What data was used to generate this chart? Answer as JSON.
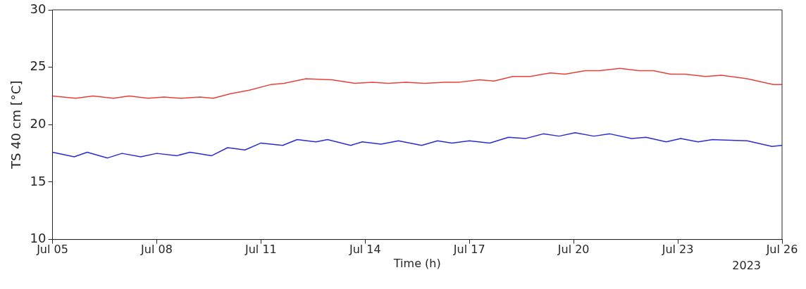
{
  "chart_data": {
    "type": "line",
    "xlabel": "Time (h)",
    "ylabel": "TS 40 cm [°C]",
    "annotations": [
      "2023"
    ],
    "xlim": [
      "2023-07-05T00:00",
      "2023-07-26T00:00"
    ],
    "xticks": [
      {
        "value": "2023-07-05T00:00",
        "label": "Jul 05"
      },
      {
        "value": "2023-07-08T00:00",
        "label": "Jul 08"
      },
      {
        "value": "2023-07-11T00:00",
        "label": "Jul 11"
      },
      {
        "value": "2023-07-14T00:00",
        "label": "Jul 14"
      },
      {
        "value": "2023-07-17T00:00",
        "label": "Jul 17"
      },
      {
        "value": "2023-07-20T00:00",
        "label": "Jul 20"
      },
      {
        "value": "2023-07-23T00:00",
        "label": "Jul 23"
      },
      {
        "value": "2023-07-26T00:00",
        "label": "Jul 26"
      }
    ],
    "ylim": [
      10,
      30
    ],
    "yticks": [
      10,
      15,
      20,
      25,
      30
    ],
    "grid": false,
    "legend": false,
    "marker": "none",
    "line_style": "solid",
    "series": [
      {
        "color": "#e8413a",
        "x": [
          "2023-07-05T00:00",
          "2023-07-05T16:00",
          "2023-07-06T04:00",
          "2023-07-06T18:00",
          "2023-07-07T05:00",
          "2023-07-07T18:00",
          "2023-07-08T05:00",
          "2023-07-08T17:00",
          "2023-07-09T06:00",
          "2023-07-09T15:00",
          "2023-07-10T03:00",
          "2023-07-10T16:00",
          "2023-07-11T07:00",
          "2023-07-11T16:00",
          "2023-07-12T07:00",
          "2023-07-13T01:00",
          "2023-07-13T17:00",
          "2023-07-14T05:00",
          "2023-07-14T16:00",
          "2023-07-15T04:00",
          "2023-07-15T17:00",
          "2023-07-16T07:00",
          "2023-07-16T17:00",
          "2023-07-17T07:00",
          "2023-07-17T17:00",
          "2023-07-18T06:00",
          "2023-07-18T18:00",
          "2023-07-19T08:00",
          "2023-07-19T18:00",
          "2023-07-20T08:00",
          "2023-07-20T18:00",
          "2023-07-21T08:00",
          "2023-07-21T21:00",
          "2023-07-22T07:00",
          "2023-07-22T19:00",
          "2023-07-23T05:00",
          "2023-07-23T19:00",
          "2023-07-24T06:00",
          "2023-07-25T00:00",
          "2023-07-25T18:00",
          "2023-07-26T00:00"
        ],
        "values": [
          22.5,
          22.3,
          22.5,
          22.3,
          22.5,
          22.3,
          22.4,
          22.3,
          22.4,
          22.3,
          22.7,
          23.0,
          23.5,
          23.6,
          24.0,
          23.9,
          23.6,
          23.7,
          23.6,
          23.7,
          23.6,
          23.7,
          23.7,
          23.9,
          23.8,
          24.2,
          24.2,
          24.5,
          24.4,
          24.7,
          24.7,
          24.9,
          24.7,
          24.7,
          24.4,
          24.4,
          24.2,
          24.3,
          24.0,
          23.5,
          23.5
        ]
      },
      {
        "color": "#2b2bd2",
        "x": [
          "2023-07-05T00:00",
          "2023-07-05T15:00",
          "2023-07-06T00:00",
          "2023-07-06T14:00",
          "2023-07-07T00:00",
          "2023-07-07T13:00",
          "2023-07-08T00:00",
          "2023-07-08T14:00",
          "2023-07-08T23:00",
          "2023-07-09T14:00",
          "2023-07-10T01:00",
          "2023-07-10T13:00",
          "2023-07-11T00:00",
          "2023-07-11T15:00",
          "2023-07-12T01:00",
          "2023-07-12T14:00",
          "2023-07-12T22:00",
          "2023-07-13T14:00",
          "2023-07-13T22:00",
          "2023-07-14T11:00",
          "2023-07-14T23:00",
          "2023-07-15T15:00",
          "2023-07-16T02:00",
          "2023-07-16T12:00",
          "2023-07-17T00:00",
          "2023-07-17T14:00",
          "2023-07-18T03:00",
          "2023-07-18T15:00",
          "2023-07-19T03:00",
          "2023-07-19T14:00",
          "2023-07-20T01:00",
          "2023-07-20T14:00",
          "2023-07-21T01:00",
          "2023-07-21T16:00",
          "2023-07-22T02:00",
          "2023-07-22T16:00",
          "2023-07-23T02:00",
          "2023-07-23T14:00",
          "2023-07-24T00:00",
          "2023-07-25T00:00",
          "2023-07-25T17:00",
          "2023-07-26T00:00"
        ],
        "values": [
          17.6,
          17.2,
          17.6,
          17.1,
          17.5,
          17.2,
          17.5,
          17.3,
          17.6,
          17.3,
          18.0,
          17.8,
          18.4,
          18.2,
          18.7,
          18.5,
          18.7,
          18.2,
          18.5,
          18.3,
          18.6,
          18.2,
          18.6,
          18.4,
          18.6,
          18.4,
          18.9,
          18.8,
          19.2,
          19.0,
          19.3,
          19.0,
          19.2,
          18.8,
          18.9,
          18.5,
          18.8,
          18.5,
          18.7,
          18.6,
          18.1,
          18.2
        ]
      }
    ]
  }
}
